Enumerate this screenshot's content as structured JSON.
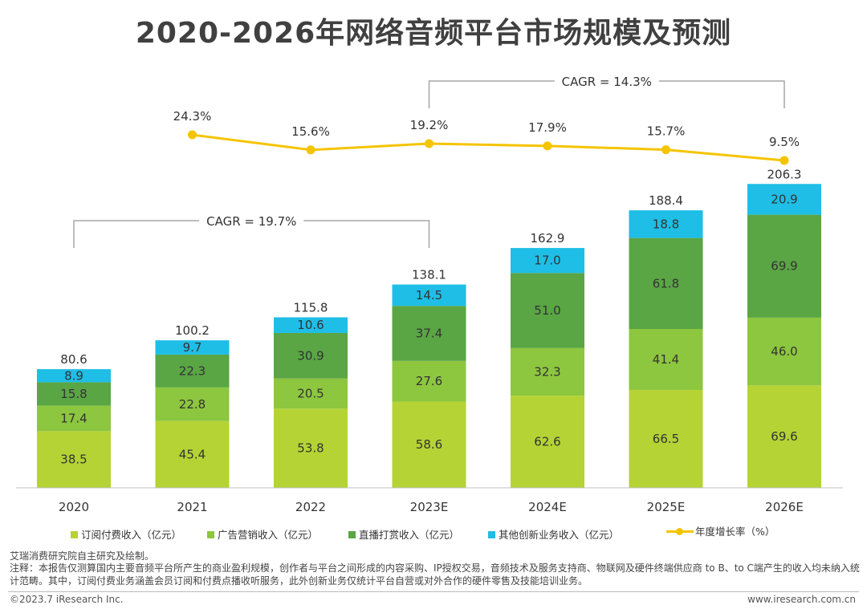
{
  "title": "2020-2026年网络音频平台市场规模及预测",
  "chart_data": {
    "type": "bar",
    "stacked": true,
    "categories": [
      "2020",
      "2021",
      "2022",
      "2023E",
      "2024E",
      "2025E",
      "2026E"
    ],
    "series": [
      {
        "name": "订阅付费收入（亿元）",
        "color": "#b5d335",
        "values": [
          38.5,
          45.4,
          53.8,
          58.6,
          62.6,
          66.5,
          69.6
        ]
      },
      {
        "name": "广告营销收入（亿元）",
        "color": "#8dc63f",
        "values": [
          17.4,
          22.8,
          20.5,
          27.6,
          32.3,
          41.4,
          46.0
        ]
      },
      {
        "name": "直播打赏收入（亿元）",
        "color": "#5aa544",
        "values": [
          15.8,
          22.3,
          30.9,
          37.4,
          51.0,
          61.8,
          69.9
        ]
      },
      {
        "name": "其他创新业务收入（亿元）",
        "color": "#1ebee6",
        "values": [
          8.9,
          9.7,
          10.6,
          14.5,
          17.0,
          18.8,
          20.9
        ]
      }
    ],
    "totals": [
      "80.6",
      "100.2",
      "115.8",
      "138.1",
      "162.9",
      "188.4",
      "206.3"
    ],
    "growth_line": {
      "name": "年度增长率（%）",
      "color": "#f5c400",
      "values": [
        24.3,
        15.6,
        19.2,
        17.9,
        15.7,
        9.5
      ],
      "labels": [
        "24.3%",
        "15.6%",
        "19.2%",
        "17.9%",
        "15.7%",
        "9.5%"
      ],
      "categories": [
        "2021",
        "2022",
        "2023E",
        "2024E",
        "2025E",
        "2026E"
      ]
    },
    "cagr_annotations": [
      {
        "label": "CAGR = 19.7%",
        "from": "2020",
        "to": "2023E"
      },
      {
        "label": "CAGR = 14.3%",
        "from": "2023E",
        "to": "2026E"
      }
    ],
    "ylim": [
      0,
      210
    ],
    "legend_position": "bottom",
    "grid": false
  },
  "source": "艾瑞消费研究院自主研究及绘制。",
  "note": "注释：本报告仅测算国内主要音频平台所产生的商业盈利规模，创作者与平台之间形成的内容采购、IP授权交易，音频技术及服务支持商、物联网及硬件终端供应商 to B、to C端产生的收入均未纳入统计范畴。其中，订阅付费业务涵盖会员订阅和付费点播收听服务，此外创新业务仅统计平台自营或对外合作的硬件零售及技能培训业务。",
  "copyright": "©2023.7 iResearch Inc.",
  "website": "www.iresearch.com.cn"
}
